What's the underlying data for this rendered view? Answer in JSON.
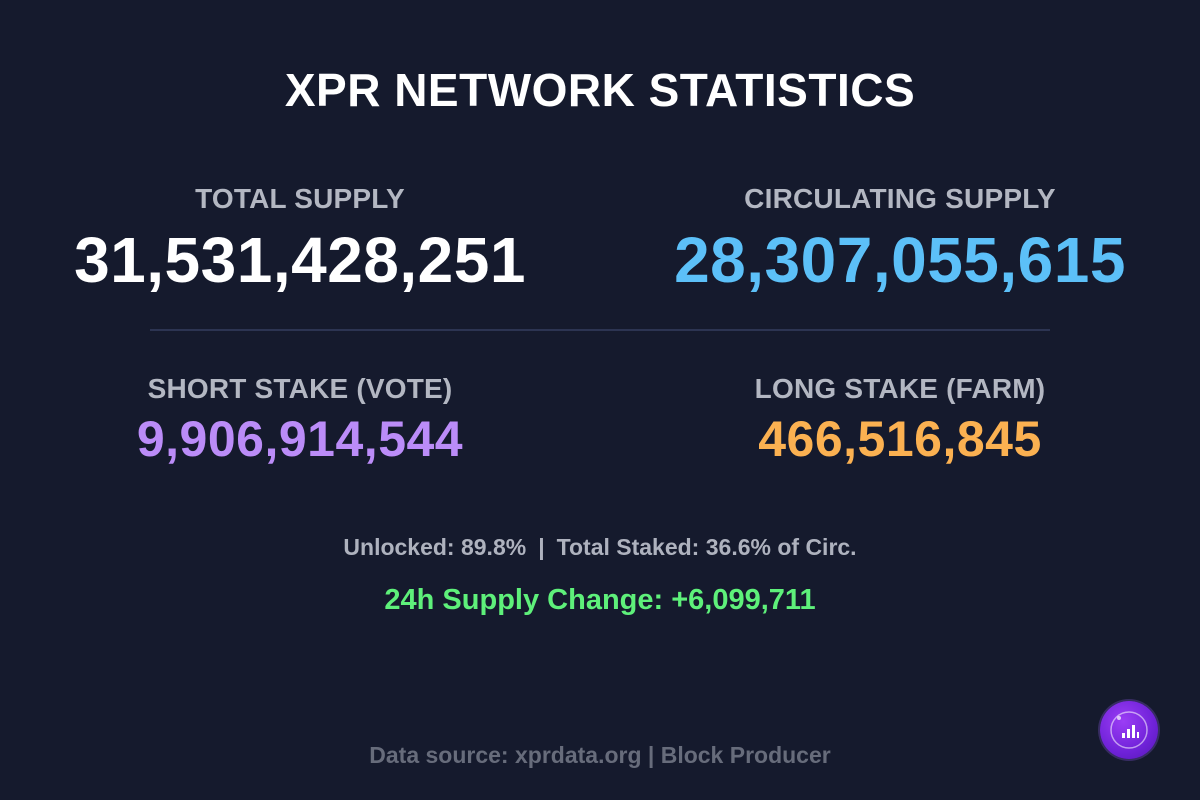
{
  "title": "XPR NETWORK STATISTICS",
  "stats": {
    "total_supply": {
      "label": "TOTAL SUPPLY",
      "value": "31,531,428,251",
      "color": "#ffffff"
    },
    "circulating_supply": {
      "label": "CIRCULATING SUPPLY",
      "value": "28,307,055,615",
      "color": "#5cc0f8"
    },
    "short_stake": {
      "label": "SHORT STAKE (VOTE)",
      "value": "9,906,914,544",
      "color": "#bb8cf8"
    },
    "long_stake": {
      "label": "LONG STAKE (FARM)",
      "value": "466,516,845",
      "color": "#fbb151"
    }
  },
  "ratios": {
    "unlocked": "Unlocked: 89.8%",
    "separator": "|",
    "total_staked": "Total Staked: 36.6% of Circ."
  },
  "supply_change": "24h Supply Change: +6,099,711",
  "footer": "Data source: xprdata.org | Block Producer",
  "badge_icon": "bar-chart-icon",
  "colors": {
    "background": "#151a2d",
    "label": "#b3b7c2",
    "change": "#5ef07a",
    "badge": "#7a2ae6"
  }
}
